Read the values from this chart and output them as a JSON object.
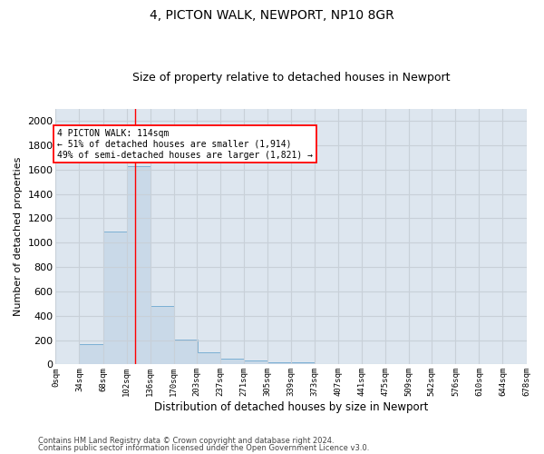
{
  "title1": "4, PICTON WALK, NEWPORT, NP10 8GR",
  "title2": "Size of property relative to detached houses in Newport",
  "xlabel": "Distribution of detached houses by size in Newport",
  "ylabel": "Number of detached properties",
  "bin_edges": [
    0,
    34,
    68,
    102,
    136,
    170,
    203,
    237,
    271,
    305,
    339,
    373,
    407,
    441,
    475,
    509,
    542,
    576,
    610,
    644,
    678
  ],
  "bar_heights": [
    0,
    165,
    1090,
    1630,
    480,
    205,
    100,
    45,
    30,
    20,
    15,
    0,
    0,
    0,
    0,
    0,
    0,
    0,
    0,
    0
  ],
  "bar_color": "#c9d9e8",
  "bar_edgecolor": "#7bafd4",
  "property_size": 114,
  "ylim": [
    0,
    2100
  ],
  "yticks": [
    0,
    200,
    400,
    600,
    800,
    1000,
    1200,
    1400,
    1600,
    1800,
    2000
  ],
  "annotation_text_line1": "4 PICTON WALK: 114sqm",
  "annotation_text_line2": "← 51% of detached houses are smaller (1,914)",
  "annotation_text_line3": "49% of semi-detached houses are larger (1,821) →",
  "grid_color": "#c8d0d8",
  "bg_color": "#dde6ef",
  "footer1": "Contains HM Land Registry data © Crown copyright and database right 2024.",
  "footer2": "Contains public sector information licensed under the Open Government Licence v3.0."
}
